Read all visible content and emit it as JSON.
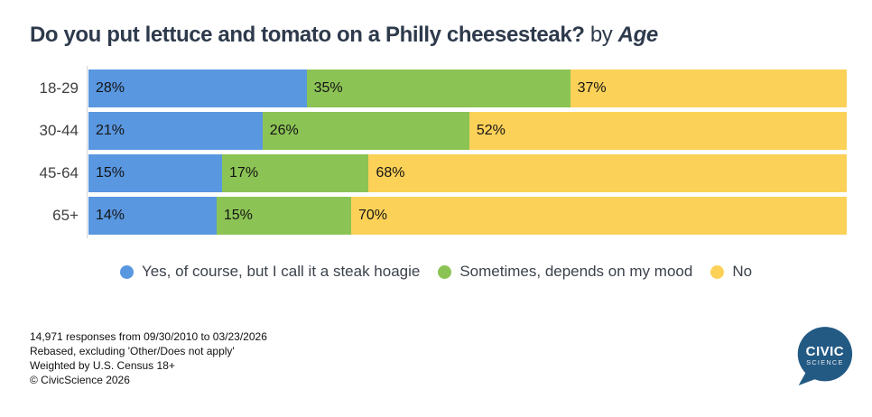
{
  "title": {
    "question": "Do you put lettuce and tomato on a Philly cheesesteak?",
    "by_word": "by",
    "segment": "Age"
  },
  "chart_data": {
    "type": "bar",
    "orientation": "horizontal",
    "stacked": true,
    "normalized_to_full_width": true,
    "categories": [
      "18-29",
      "30-44",
      "45-64",
      "65+"
    ],
    "series": [
      {
        "name": "Yes, of course, but I call it a steak hoagie",
        "color": "#5997E0",
        "values": [
          28,
          21,
          15,
          14
        ]
      },
      {
        "name": "Sometimes, depends on my mood",
        "color": "#8CC355",
        "values": [
          35,
          26,
          17,
          15
        ]
      },
      {
        "name": "No",
        "color": "#FCD158",
        "values": [
          37,
          52,
          68,
          70
        ]
      }
    ],
    "value_suffix": "%",
    "xlim": [
      0,
      100
    ],
    "grid": false,
    "legend_position": "bottom"
  },
  "footer": {
    "lines": [
      "14,971 responses from 09/30/2010 to 03/23/2026",
      "Rebased, excluding 'Other/Does not apply'",
      "Weighted by U.S. Census 18+",
      "© CivicScience 2026"
    ]
  },
  "logo": {
    "line1": "CIVIC",
    "line2": "SCIENCE",
    "bubble_color": "#235A84"
  }
}
